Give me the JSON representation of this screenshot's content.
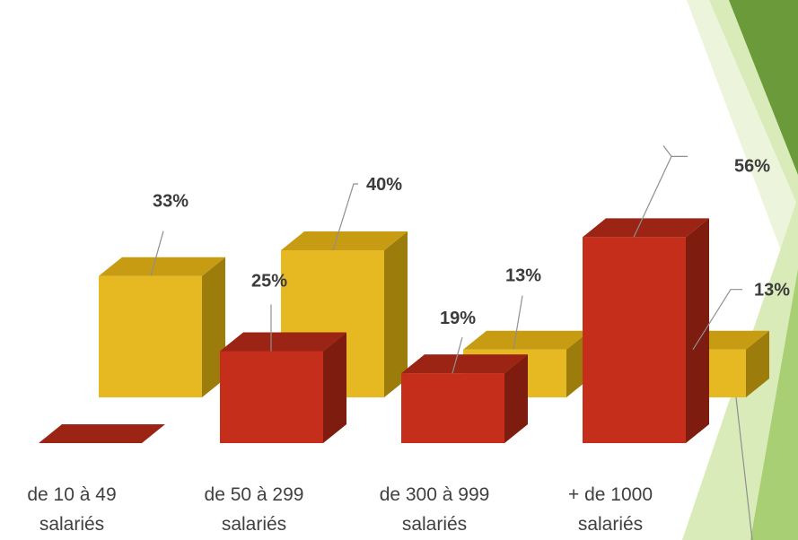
{
  "chart_data": {
    "type": "bar",
    "categories": [
      [
        "de 10 à 49",
        "salariés"
      ],
      [
        "de 50 à 299",
        "salariés"
      ],
      [
        "de 300 à 999",
        "salariés"
      ],
      [
        "+ de 1000",
        "salariés"
      ]
    ],
    "series": [
      {
        "values": [
          33,
          40,
          13,
          13
        ],
        "labels": [
          "33%",
          "40%",
          "13%",
          "13%"
        ]
      },
      {
        "values": [
          0,
          25,
          19,
          56
        ],
        "labels": [
          "",
          "25%",
          "19%",
          "56%"
        ]
      }
    ],
    "ylim": [
      0,
      60
    ],
    "grid": false,
    "legend": "none"
  },
  "colors": {
    "yellow_front": "#E6B822",
    "yellow_side": "#9C7D0C",
    "yellow_top": "#C79B12",
    "red_front": "#C42E1A",
    "red_side": "#7E1C10",
    "red_top": "#9B2414",
    "leader": "#8f8f8f",
    "deco_dark": "#6B9A3A",
    "deco_mid": "#A9CF74",
    "deco_light": "#D9EBB8",
    "deco_pale": "#ECF5DC"
  }
}
